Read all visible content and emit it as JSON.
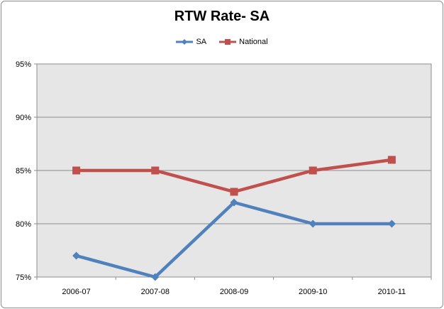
{
  "chart_data": {
    "type": "line",
    "title": "RTW Rate- SA",
    "categories": [
      "2006-07",
      "2007-08",
      "2008-09",
      "2009-10",
      "2010-11"
    ],
    "series": [
      {
        "name": "SA",
        "values": [
          77,
          75,
          82,
          80,
          80
        ],
        "color": "#4f81bd",
        "marker": "diamond"
      },
      {
        "name": "National",
        "values": [
          85,
          85,
          83,
          85,
          86
        ],
        "color": "#c0504d",
        "marker": "square"
      }
    ],
    "ylim": [
      75,
      95
    ],
    "yticks": [
      "75%",
      "80%",
      "85%",
      "90%",
      "95%"
    ],
    "grid": true,
    "legend_position": "top",
    "plot_background": "#e6e6e6"
  }
}
